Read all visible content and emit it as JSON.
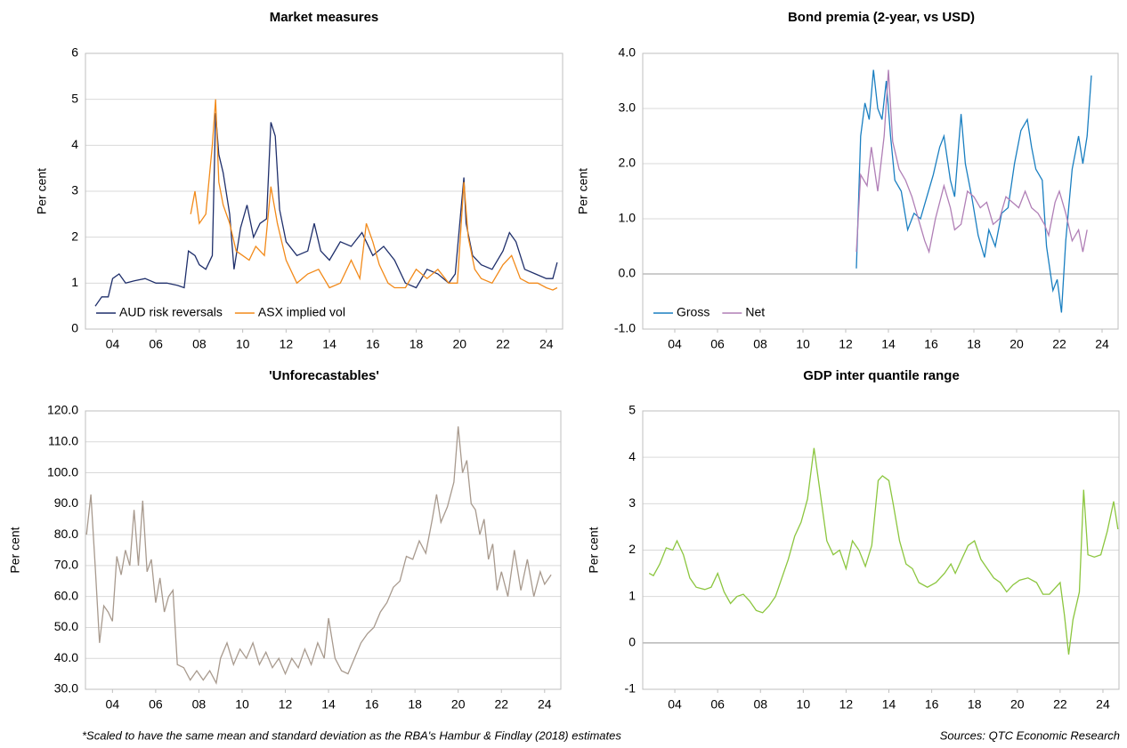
{
  "chart_data": [
    {
      "type": "line",
      "title": "Market measures",
      "ylabel": "Per cent",
      "ylim": [
        0,
        6
      ],
      "yticks": [
        0,
        1,
        2,
        3,
        4,
        5,
        6
      ],
      "xlim": [
        2.75,
        24.75
      ],
      "xticks": [
        {
          "value": 4,
          "label": "04"
        },
        {
          "value": 6,
          "label": "06"
        },
        {
          "value": 8,
          "label": "08"
        },
        10,
        12,
        14,
        16,
        18,
        20,
        22,
        24
      ],
      "grid": true,
      "legend": "lower left",
      "series": [
        {
          "name": "AUD risk reversals",
          "color": "#1f2f6b",
          "x": [
            3.2,
            3.5,
            3.8,
            4.0,
            4.3,
            4.6,
            5.0,
            5.5,
            6.0,
            6.5,
            7.0,
            7.3,
            7.5,
            7.8,
            8.0,
            8.3,
            8.6,
            8.75,
            8.9,
            9.1,
            9.4,
            9.6,
            9.9,
            10.2,
            10.5,
            10.8,
            11.1,
            11.3,
            11.5,
            11.7,
            12.0,
            12.5,
            13.0,
            13.3,
            13.6,
            14.0,
            14.5,
            15.0,
            15.5,
            16.0,
            16.5,
            17.0,
            17.5,
            18.0,
            18.5,
            19.0,
            19.5,
            19.8,
            20.2,
            20.3,
            20.6,
            21.0,
            21.5,
            22.0,
            22.3,
            22.6,
            23.0,
            23.5,
            24.0,
            24.3,
            24.5
          ],
          "values": [
            0.5,
            0.7,
            0.7,
            1.1,
            1.2,
            1.0,
            1.05,
            1.1,
            1.0,
            1.0,
            0.95,
            0.9,
            1.7,
            1.6,
            1.4,
            1.3,
            1.6,
            4.7,
            3.8,
            3.4,
            2.5,
            1.3,
            2.2,
            2.7,
            2.0,
            2.3,
            2.4,
            4.5,
            4.2,
            2.6,
            1.9,
            1.6,
            1.7,
            2.3,
            1.7,
            1.5,
            1.9,
            1.8,
            2.1,
            1.6,
            1.8,
            1.5,
            1.0,
            0.9,
            1.3,
            1.2,
            1.0,
            1.2,
            3.3,
            2.3,
            1.6,
            1.4,
            1.3,
            1.7,
            2.1,
            1.9,
            1.3,
            1.2,
            1.1,
            1.1,
            1.45
          ]
        },
        {
          "name": "ASX implied vol",
          "color": "#f28a1a",
          "x": [
            7.6,
            7.8,
            8.0,
            8.3,
            8.6,
            8.75,
            8.9,
            9.1,
            9.4,
            9.7,
            10.0,
            10.3,
            10.6,
            11.0,
            11.3,
            11.6,
            12.0,
            12.5,
            13.0,
            13.5,
            14.0,
            14.5,
            15.0,
            15.4,
            15.7,
            16.0,
            16.3,
            16.7,
            17.0,
            17.5,
            18.0,
            18.5,
            19.0,
            19.5,
            19.9,
            20.2,
            20.4,
            20.7,
            21.0,
            21.5,
            22.0,
            22.4,
            22.8,
            23.2,
            23.6,
            24.0,
            24.3,
            24.5
          ],
          "values": [
            2.5,
            3.0,
            2.3,
            2.5,
            4.0,
            5.0,
            3.2,
            2.7,
            2.3,
            1.7,
            1.6,
            1.5,
            1.8,
            1.6,
            3.1,
            2.3,
            1.5,
            1.0,
            1.2,
            1.3,
            0.9,
            1.0,
            1.5,
            1.1,
            2.3,
            1.9,
            1.4,
            1.0,
            0.9,
            0.9,
            1.3,
            1.1,
            1.3,
            1.0,
            1.0,
            3.2,
            2.0,
            1.3,
            1.1,
            1.0,
            1.4,
            1.6,
            1.1,
            1.0,
            1.0,
            0.9,
            0.85,
            0.9
          ]
        }
      ]
    },
    {
      "type": "line",
      "title": "Bond premia (2-year, vs USD)",
      "ylabel": "Per cent",
      "ylim": [
        -1,
        4
      ],
      "yticks": [
        {
          "value": -1,
          "label": "-1.0"
        },
        {
          "value": 0,
          "label": "0.0"
        },
        {
          "value": 1,
          "label": "1.0"
        },
        {
          "value": 2,
          "label": "2.0"
        },
        {
          "value": 3,
          "label": "3.0"
        },
        {
          "value": 4,
          "label": "4.0"
        }
      ],
      "xlim": [
        2.5,
        24.75
      ],
      "xticks": [
        {
          "value": 4,
          "label": "04"
        },
        {
          "value": 6,
          "label": "06"
        },
        {
          "value": 8,
          "label": "08"
        },
        10,
        12,
        14,
        16,
        18,
        20,
        22,
        24
      ],
      "grid": true,
      "legend": "lower left",
      "series": [
        {
          "name": "Gross",
          "color": "#1a7fc1",
          "x": [
            12.5,
            12.7,
            12.9,
            13.1,
            13.3,
            13.5,
            13.7,
            13.9,
            14.1,
            14.3,
            14.6,
            14.9,
            15.2,
            15.5,
            15.8,
            16.1,
            16.4,
            16.6,
            16.9,
            17.1,
            17.4,
            17.6,
            17.9,
            18.2,
            18.5,
            18.7,
            19.0,
            19.3,
            19.6,
            19.9,
            20.2,
            20.5,
            20.7,
            20.9,
            21.2,
            21.4,
            21.7,
            21.9,
            22.1,
            22.3,
            22.6,
            22.9,
            23.1,
            23.3,
            23.5
          ],
          "values": [
            0.1,
            2.5,
            3.1,
            2.8,
            3.7,
            3.0,
            2.8,
            3.5,
            2.5,
            1.7,
            1.5,
            0.8,
            1.1,
            1.0,
            1.4,
            1.8,
            2.3,
            2.5,
            1.7,
            1.4,
            2.9,
            2.0,
            1.4,
            0.7,
            0.3,
            0.8,
            0.5,
            1.1,
            1.2,
            2.0,
            2.6,
            2.8,
            2.3,
            1.9,
            1.7,
            0.5,
            -0.3,
            -0.1,
            -0.7,
            0.6,
            1.9,
            2.5,
            2.0,
            2.5,
            3.6
          ]
        },
        {
          "name": "Net",
          "color": "#b07fb6",
          "x": [
            12.5,
            12.7,
            13.0,
            13.2,
            13.5,
            13.8,
            14.0,
            14.2,
            14.5,
            14.8,
            15.1,
            15.4,
            15.7,
            15.9,
            16.2,
            16.6,
            16.9,
            17.1,
            17.4,
            17.7,
            18.0,
            18.3,
            18.6,
            18.9,
            19.2,
            19.5,
            19.8,
            20.1,
            20.4,
            20.7,
            21.0,
            21.3,
            21.5,
            21.8,
            22.0,
            22.3,
            22.6,
            22.9,
            23.1,
            23.3
          ],
          "values": [
            0.4,
            1.8,
            1.6,
            2.3,
            1.5,
            2.5,
            3.7,
            2.4,
            1.9,
            1.7,
            1.4,
            1.0,
            0.6,
            0.4,
            1.0,
            1.6,
            1.2,
            0.8,
            0.9,
            1.5,
            1.4,
            1.2,
            1.3,
            0.9,
            1.0,
            1.4,
            1.3,
            1.2,
            1.5,
            1.2,
            1.1,
            0.9,
            0.7,
            1.3,
            1.5,
            1.1,
            0.6,
            0.8,
            0.4,
            0.8
          ]
        }
      ]
    },
    {
      "type": "line",
      "title": "'Unforecastables'",
      "ylabel": "Per cent",
      "ylim": [
        30,
        120
      ],
      "yticks": [
        {
          "value": 30,
          "label": "30.0"
        },
        {
          "value": 40,
          "label": "40.0"
        },
        {
          "value": 50,
          "label": "50.0"
        },
        {
          "value": 60,
          "label": "60.0"
        },
        {
          "value": 70,
          "label": "70.0"
        },
        {
          "value": 80,
          "label": "80.0"
        },
        {
          "value": 90,
          "label": "90.0"
        },
        {
          "value": 100,
          "label": "100.0"
        },
        {
          "value": 110,
          "label": "110.0"
        },
        {
          "value": 120,
          "label": "120.0"
        }
      ],
      "xlim": [
        2.75,
        24.75
      ],
      "xticks": [
        {
          "value": 4,
          "label": "04"
        },
        {
          "value": 6,
          "label": "06"
        },
        {
          "value": 8,
          "label": "08"
        },
        10,
        12,
        14,
        16,
        18,
        20,
        22,
        24
      ],
      "grid": true,
      "color": "#a89a8e",
      "x": [
        2.8,
        3.0,
        3.2,
        3.4,
        3.6,
        3.8,
        4.0,
        4.2,
        4.4,
        4.6,
        4.8,
        5.0,
        5.2,
        5.4,
        5.6,
        5.8,
        6.0,
        6.2,
        6.4,
        6.6,
        6.8,
        7.0,
        7.3,
        7.6,
        7.9,
        8.2,
        8.5,
        8.8,
        9.0,
        9.3,
        9.6,
        9.9,
        10.2,
        10.5,
        10.8,
        11.1,
        11.4,
        11.7,
        12.0,
        12.3,
        12.6,
        12.9,
        13.2,
        13.5,
        13.8,
        14.0,
        14.3,
        14.6,
        14.9,
        15.2,
        15.5,
        15.8,
        16.1,
        16.4,
        16.7,
        17.0,
        17.3,
        17.6,
        17.9,
        18.2,
        18.5,
        18.8,
        19.0,
        19.2,
        19.5,
        19.8,
        20.0,
        20.2,
        20.4,
        20.6,
        20.8,
        21.0,
        21.2,
        21.4,
        21.6,
        21.8,
        22.0,
        22.3,
        22.6,
        22.9,
        23.2,
        23.5,
        23.8,
        24.0,
        24.3
      ],
      "values": [
        80,
        93,
        70,
        45,
        57,
        55,
        52,
        73,
        67,
        75,
        70,
        88,
        70,
        91,
        68,
        72,
        58,
        66,
        55,
        60,
        62,
        38,
        37,
        33,
        36,
        33,
        36,
        32,
        40,
        45,
        38,
        43,
        40,
        45,
        38,
        42,
        37,
        40,
        35,
        40,
        37,
        43,
        38,
        45,
        40,
        53,
        40,
        36,
        35,
        40,
        45,
        48,
        50,
        55,
        58,
        63,
        65,
        73,
        72,
        78,
        74,
        85,
        93,
        84,
        89,
        97,
        115,
        100,
        104,
        90,
        88,
        80,
        85,
        72,
        77,
        62,
        68,
        60,
        75,
        62,
        72,
        60,
        68,
        64,
        67
      ]
    },
    {
      "type": "line",
      "title": "GDP inter quantile range",
      "ylabel": "Per cent",
      "ylim": [
        -1,
        5
      ],
      "yticks": [
        -1,
        0,
        1,
        2,
        3,
        4,
        5
      ],
      "xlim": [
        2.5,
        24.75
      ],
      "xticks": [
        {
          "value": 4,
          "label": "04"
        },
        {
          "value": 6,
          "label": "06"
        },
        {
          "value": 8,
          "label": "08"
        },
        10,
        12,
        14,
        16,
        18,
        20,
        22,
        24
      ],
      "grid": true,
      "color": "#8cc63f",
      "x": [
        2.8,
        3.0,
        3.3,
        3.6,
        3.9,
        4.1,
        4.4,
        4.7,
        5.0,
        5.4,
        5.7,
        6.0,
        6.3,
        6.6,
        6.9,
        7.2,
        7.5,
        7.8,
        8.1,
        8.4,
        8.7,
        9.0,
        9.3,
        9.6,
        9.9,
        10.2,
        10.5,
        10.8,
        11.1,
        11.4,
        11.7,
        12.0,
        12.3,
        12.6,
        12.9,
        13.2,
        13.5,
        13.7,
        14.0,
        14.2,
        14.5,
        14.8,
        15.1,
        15.4,
        15.8,
        16.2,
        16.6,
        16.9,
        17.1,
        17.4,
        17.7,
        18.0,
        18.3,
        18.6,
        18.9,
        19.2,
        19.5,
        19.8,
        20.1,
        20.5,
        20.9,
        21.2,
        21.5,
        21.8,
        22.0,
        22.2,
        22.4,
        22.6,
        22.9,
        23.1,
        23.3,
        23.6,
        23.9,
        24.2,
        24.5,
        24.7
      ],
      "values": [
        1.5,
        1.45,
        1.7,
        2.05,
        2.0,
        2.2,
        1.9,
        1.4,
        1.2,
        1.15,
        1.2,
        1.5,
        1.1,
        0.85,
        1.0,
        1.05,
        0.9,
        0.7,
        0.65,
        0.8,
        1.0,
        1.4,
        1.8,
        2.3,
        2.6,
        3.1,
        4.2,
        3.2,
        2.2,
        1.9,
        2.0,
        1.6,
        2.2,
        2.0,
        1.65,
        2.1,
        3.5,
        3.6,
        3.5,
        3.0,
        2.2,
        1.7,
        1.6,
        1.3,
        1.2,
        1.3,
        1.5,
        1.7,
        1.5,
        1.8,
        2.1,
        2.2,
        1.8,
        1.6,
        1.4,
        1.3,
        1.1,
        1.25,
        1.35,
        1.4,
        1.3,
        1.05,
        1.05,
        1.2,
        1.3,
        0.6,
        -0.25,
        0.5,
        1.1,
        3.3,
        1.9,
        1.85,
        1.9,
        2.4,
        3.05,
        2.45
      ]
    }
  ],
  "footnote": "*Scaled to have the same mean and standard deviation as the RBA's Hambur & Findlay (2018) estimates",
  "source": "Sources: QTC Economic Research"
}
